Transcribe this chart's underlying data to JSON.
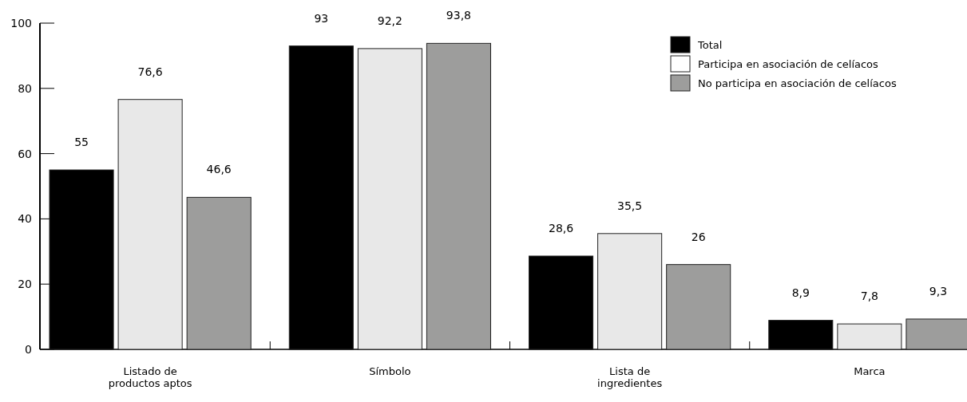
{
  "chart_data": {
    "type": "bar",
    "categories": [
      "Listado de productos aptos",
      "Símbolo",
      "Lista de ingredientes",
      "Marca"
    ],
    "series": [
      {
        "name": "Total",
        "color": "#000000",
        "values": [
          55,
          93,
          28.6,
          8.9
        ],
        "value_labels": [
          "55",
          "93",
          "28,6",
          "8,9"
        ]
      },
      {
        "name": "Participa en asociación de celíacos",
        "color": "#e8e8e8",
        "values": [
          76.6,
          92.2,
          35.5,
          7.8
        ],
        "value_labels": [
          "76,6",
          "92,2",
          "35,5",
          "7,8"
        ]
      },
      {
        "name": "No participa en asociación de celíacos",
        "color": "#9d9d9c",
        "values": [
          46.6,
          93.8,
          26,
          9.3
        ],
        "value_labels": [
          "46,6",
          "93,8",
          "26",
          "9,3"
        ]
      }
    ],
    "ylim": [
      0,
      100
    ],
    "yticks": [
      0,
      20,
      40,
      60,
      80,
      100
    ],
    "legend": "top right",
    "grid": false
  }
}
